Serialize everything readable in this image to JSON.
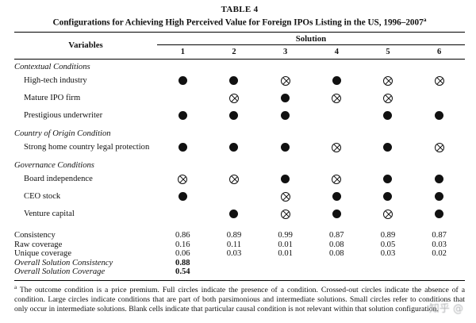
{
  "table": {
    "label": "TABLE 4",
    "title": "Configurations for Achieving High Perceived Value for Foreign IPOs Listing in the US, 1996–2007",
    "title_superscript": "a",
    "header": {
      "variables_label": "Variables",
      "solution_label": "Solution",
      "columns": [
        "1",
        "2",
        "3",
        "4",
        "5",
        "6"
      ]
    },
    "sections": [
      {
        "heading": "Contextual Conditions",
        "rows": [
          {
            "label": "High-tech industry",
            "cells": [
              "filled",
              "filled",
              "crossed",
              "filled",
              "crossed",
              "crossed"
            ]
          },
          {
            "label": "Mature IPO firm",
            "cells": [
              "blank",
              "crossed",
              "filled",
              "crossed",
              "crossed",
              "blank"
            ]
          },
          {
            "label": "Prestigious underwriter",
            "cells": [
              "filled",
              "filled",
              "filled",
              "blank",
              "filled",
              "filled"
            ]
          }
        ]
      },
      {
        "heading": "Country of Origin Condition",
        "rows": [
          {
            "label": "Strong home country legal protection",
            "cells": [
              "filled",
              "filled",
              "filled",
              "crossed",
              "filled",
              "crossed"
            ]
          }
        ]
      },
      {
        "heading": "Governance Conditions",
        "rows": [
          {
            "label": "Board independence",
            "cells": [
              "crossed",
              "crossed",
              "filled",
              "crossed",
              "filled",
              "filled"
            ]
          },
          {
            "label": "CEO stock",
            "cells": [
              "filled",
              "blank",
              "crossed",
              "filled",
              "filled",
              "filled"
            ]
          },
          {
            "label": "Venture capital",
            "cells": [
              "blank",
              "filled",
              "crossed",
              "filled",
              "crossed",
              "filled"
            ]
          }
        ]
      }
    ],
    "stats": [
      {
        "label": "Consistency",
        "overall": false,
        "values": [
          "0.86",
          "0.89",
          "0.99",
          "0.87",
          "0.89",
          "0.87"
        ]
      },
      {
        "label": "Raw coverage",
        "overall": false,
        "values": [
          "0.16",
          "0.11",
          "0.01",
          "0.08",
          "0.05",
          "0.03"
        ]
      },
      {
        "label": "Unique coverage",
        "overall": false,
        "values": [
          "0.06",
          "0.03",
          "0.01",
          "0.08",
          "0.03",
          "0.02"
        ]
      },
      {
        "label": "Overall Solution Consistency",
        "overall": true,
        "values": [
          "0.88",
          "",
          "",
          "",
          "",
          ""
        ]
      },
      {
        "label": "Overall Solution Coverage",
        "overall": true,
        "values": [
          "0.54",
          "",
          "",
          "",
          "",
          ""
        ]
      }
    ],
    "footnote_marker": "a",
    "footnote": "The outcome condition is a price premium. Full circles indicate the presence of a condition. Crossed-out circles indicate the absence of a condition. Large circles indicate conditions that are part of both parsimonious and intermediate solutions. Small circles refer to conditions that only occur in intermediate solutions. Blank cells indicate that particular causal condition is not relevant within that solution configuration."
  },
  "legend": {
    "filled_symbol_meaning": "presence of a condition",
    "crossed_symbol_meaning": "absence of a condition",
    "blank_cell_meaning": "condition not relevant in that solution"
  },
  "watermark": {
    "text": "知乎 @"
  }
}
